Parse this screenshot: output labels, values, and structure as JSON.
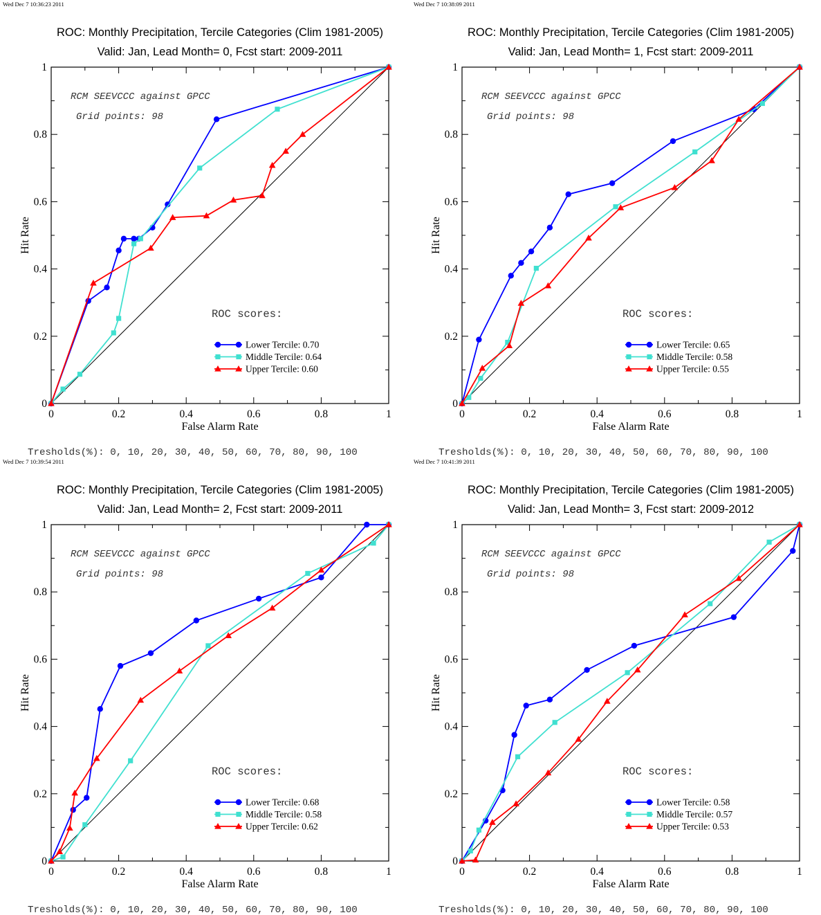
{
  "chart_data": [
    {
      "type": "line",
      "timestamp": "Wed Dec  7 10:36:23 2011",
      "title": "ROC: Monthly Precipitation, Tercile Categories (Clim 1981-2005)",
      "subtitle": "Valid: Jan, Lead Month= 0, Fcst start: 2009-2011",
      "xlabel": "False Alarm Rate",
      "ylabel": "Hit Rate",
      "xlim": [
        0,
        1
      ],
      "ylim": [
        0,
        1
      ],
      "xticks": [
        "0",
        "0.2",
        "0.4",
        "0.6",
        "0.8",
        "1"
      ],
      "yticks": [
        "0",
        "0.2",
        "0.4",
        "0.6",
        "0.8",
        "1"
      ],
      "annotation1": "RCM SEEVCCC against GPCC",
      "annotation2": "Grid points:   98",
      "scores_header": "ROC scores:",
      "footer": "Tresholds(%): 0, 10, 20, 30, 40, 50, 60, 70, 80, 90, 100",
      "legend_position": "lower-right",
      "series": [
        {
          "name": "Lower Tercile: 0.70",
          "color": "#0000ff",
          "marker": "circle",
          "points": [
            [
              0,
              0
            ],
            [
              0.11,
              0.305
            ],
            [
              0.165,
              0.345
            ],
            [
              0.2,
              0.455
            ],
            [
              0.215,
              0.49
            ],
            [
              0.245,
              0.49
            ],
            [
              0.26,
              0.49
            ],
            [
              0.3,
              0.523
            ],
            [
              0.345,
              0.592
            ],
            [
              0.49,
              0.845
            ],
            [
              1,
              1
            ]
          ]
        },
        {
          "name": "Middle Tercile: 0.64",
          "color": "#40e0d0",
          "marker": "square",
          "points": [
            [
              0,
              0
            ],
            [
              0.035,
              0.043
            ],
            [
              0.085,
              0.087
            ],
            [
              0.185,
              0.21
            ],
            [
              0.2,
              0.253
            ],
            [
              0.245,
              0.475
            ],
            [
              0.265,
              0.49
            ],
            [
              0.44,
              0.7
            ],
            [
              0.67,
              0.875
            ],
            [
              1,
              1
            ]
          ]
        },
        {
          "name": "Upper Tercile: 0.60",
          "color": "#ff0000",
          "marker": "triangle",
          "points": [
            [
              0,
              0
            ],
            [
              0.125,
              0.358
            ],
            [
              0.295,
              0.462
            ],
            [
              0.36,
              0.553
            ],
            [
              0.46,
              0.558
            ],
            [
              0.54,
              0.605
            ],
            [
              0.625,
              0.618
            ],
            [
              0.655,
              0.708
            ],
            [
              0.695,
              0.75
            ],
            [
              0.745,
              0.8
            ],
            [
              1,
              1
            ]
          ]
        }
      ]
    },
    {
      "type": "line",
      "timestamp": "Wed Dec  7 10:38:09 2011",
      "title": "ROC: Monthly Precipitation, Tercile Categories (Clim 1981-2005)",
      "subtitle": "Valid: Jan, Lead Month= 1, Fcst start: 2009-2011",
      "xlabel": "False Alarm Rate",
      "ylabel": "Hit Rate",
      "xlim": [
        0,
        1
      ],
      "ylim": [
        0,
        1
      ],
      "xticks": [
        "0",
        "0.2",
        "0.4",
        "0.6",
        "0.8",
        "1"
      ],
      "yticks": [
        "0",
        "0.2",
        "0.4",
        "0.6",
        "0.8",
        "1"
      ],
      "annotation1": "RCM SEEVCCC against GPCC",
      "annotation2": "Grid points:   98",
      "scores_header": "ROC scores:",
      "footer": "Tresholds(%): 0, 10, 20, 30, 40, 50, 60, 70, 80, 90, 100",
      "legend_position": "lower-right",
      "series": [
        {
          "name": "Lower Tercile: 0.65",
          "color": "#0000ff",
          "marker": "circle",
          "points": [
            [
              0,
              0
            ],
            [
              0.05,
              0.19
            ],
            [
              0.145,
              0.38
            ],
            [
              0.175,
              0.418
            ],
            [
              0.205,
              0.452
            ],
            [
              0.26,
              0.523
            ],
            [
              0.315,
              0.622
            ],
            [
              0.445,
              0.655
            ],
            [
              0.625,
              0.78
            ],
            [
              0.865,
              0.875
            ],
            [
              1,
              1
            ]
          ]
        },
        {
          "name": "Middle Tercile: 0.58",
          "color": "#40e0d0",
          "marker": "square",
          "points": [
            [
              0,
              0
            ],
            [
              0.02,
              0.018
            ],
            [
              0.055,
              0.075
            ],
            [
              0.135,
              0.182
            ],
            [
              0.22,
              0.402
            ],
            [
              0.455,
              0.585
            ],
            [
              0.69,
              0.748
            ],
            [
              0.89,
              0.892
            ],
            [
              1,
              1
            ]
          ]
        },
        {
          "name": "Upper Tercile: 0.55",
          "color": "#ff0000",
          "marker": "triangle",
          "points": [
            [
              0,
              0
            ],
            [
              0.06,
              0.105
            ],
            [
              0.14,
              0.172
            ],
            [
              0.175,
              0.298
            ],
            [
              0.255,
              0.35
            ],
            [
              0.375,
              0.492
            ],
            [
              0.47,
              0.582
            ],
            [
              0.63,
              0.642
            ],
            [
              0.74,
              0.722
            ],
            [
              0.82,
              0.845
            ],
            [
              1,
              1
            ]
          ]
        }
      ]
    },
    {
      "type": "line",
      "timestamp": "Wed Dec  7 10:39:54 2011",
      "title": "ROC: Monthly Precipitation, Tercile Categories (Clim 1981-2005)",
      "subtitle": "Valid: Jan, Lead Month= 2, Fcst start: 2009-2011",
      "xlabel": "False Alarm Rate",
      "ylabel": "Hit Rate",
      "xlim": [
        0,
        1
      ],
      "ylim": [
        0,
        1
      ],
      "xticks": [
        "0",
        "0.2",
        "0.4",
        "0.6",
        "0.8",
        "1"
      ],
      "yticks": [
        "0",
        "0.2",
        "0.4",
        "0.6",
        "0.8",
        "1"
      ],
      "annotation1": "RCM SEEVCCC against GPCC",
      "annotation2": "Grid points:   98",
      "scores_header": "ROC scores:",
      "footer": "Tresholds(%): 0, 10, 20, 30, 40, 50, 60, 70, 80, 90, 100",
      "legend_position": "lower-right",
      "series": [
        {
          "name": "Lower Tercile: 0.68",
          "color": "#0000ff",
          "marker": "circle",
          "points": [
            [
              0,
              0
            ],
            [
              0.065,
              0.152
            ],
            [
              0.105,
              0.188
            ],
            [
              0.145,
              0.452
            ],
            [
              0.205,
              0.58
            ],
            [
              0.295,
              0.618
            ],
            [
              0.43,
              0.715
            ],
            [
              0.615,
              0.78
            ],
            [
              0.8,
              0.843
            ],
            [
              0.935,
              1
            ],
            [
              1,
              1
            ]
          ]
        },
        {
          "name": "Middle Tercile: 0.58",
          "color": "#40e0d0",
          "marker": "square",
          "points": [
            [
              0,
              0
            ],
            [
              0.035,
              0.012
            ],
            [
              0.1,
              0.108
            ],
            [
              0.235,
              0.298
            ],
            [
              0.465,
              0.64
            ],
            [
              0.76,
              0.855
            ],
            [
              0.955,
              0.945
            ],
            [
              1,
              1
            ]
          ]
        },
        {
          "name": "Upper Tercile: 0.62",
          "color": "#ff0000",
          "marker": "triangle",
          "points": [
            [
              0,
              0
            ],
            [
              0.025,
              0.028
            ],
            [
              0.055,
              0.098
            ],
            [
              0.07,
              0.202
            ],
            [
              0.135,
              0.305
            ],
            [
              0.265,
              0.478
            ],
            [
              0.38,
              0.565
            ],
            [
              0.525,
              0.67
            ],
            [
              0.655,
              0.752
            ],
            [
              0.8,
              0.865
            ],
            [
              1,
              1
            ]
          ]
        }
      ]
    },
    {
      "type": "line",
      "timestamp": "Wed Dec  7 10:41:39 2011",
      "title": "ROC: Monthly Precipitation, Tercile Categories (Clim 1981-2005)",
      "subtitle": "Valid: Jan, Lead Month= 3, Fcst start: 2009-2012",
      "xlabel": "False Alarm Rate",
      "ylabel": "Hit Rate",
      "xlim": [
        0,
        1
      ],
      "ylim": [
        0,
        1
      ],
      "xticks": [
        "0",
        "0.2",
        "0.4",
        "0.6",
        "0.8",
        "1"
      ],
      "yticks": [
        "0",
        "0.2",
        "0.4",
        "0.6",
        "0.8",
        "1"
      ],
      "annotation1": "RCM SEEVCCC against GPCC",
      "annotation2": "Grid points:   98",
      "scores_header": "ROC scores:",
      "footer": "Tresholds(%): 0, 10, 20, 30, 40, 50, 60, 70, 80, 90, 100",
      "legend_position": "lower-right",
      "series": [
        {
          "name": "Lower Tercile: 0.58",
          "color": "#0000ff",
          "marker": "circle",
          "points": [
            [
              0,
              0
            ],
            [
              0.07,
              0.12
            ],
            [
              0.12,
              0.21
            ],
            [
              0.155,
              0.375
            ],
            [
              0.19,
              0.462
            ],
            [
              0.26,
              0.48
            ],
            [
              0.37,
              0.568
            ],
            [
              0.51,
              0.64
            ],
            [
              0.805,
              0.725
            ],
            [
              0.98,
              0.922
            ],
            [
              1,
              1
            ]
          ]
        },
        {
          "name": "Middle Tercile: 0.57",
          "color": "#40e0d0",
          "marker": "square",
          "points": [
            [
              0,
              0
            ],
            [
              0.025,
              0.03
            ],
            [
              0.05,
              0.092
            ],
            [
              0.165,
              0.31
            ],
            [
              0.275,
              0.412
            ],
            [
              0.49,
              0.56
            ],
            [
              0.735,
              0.765
            ],
            [
              0.91,
              0.948
            ],
            [
              1,
              1
            ]
          ]
        },
        {
          "name": "Upper Tercile: 0.53",
          "color": "#ff0000",
          "marker": "triangle",
          "points": [
            [
              0,
              0
            ],
            [
              0.04,
              0.003
            ],
            [
              0.09,
              0.115
            ],
            [
              0.16,
              0.17
            ],
            [
              0.255,
              0.262
            ],
            [
              0.345,
              0.362
            ],
            [
              0.43,
              0.475
            ],
            [
              0.52,
              0.568
            ],
            [
              0.66,
              0.732
            ],
            [
              0.82,
              0.84
            ],
            [
              1,
              1
            ]
          ]
        }
      ]
    }
  ]
}
